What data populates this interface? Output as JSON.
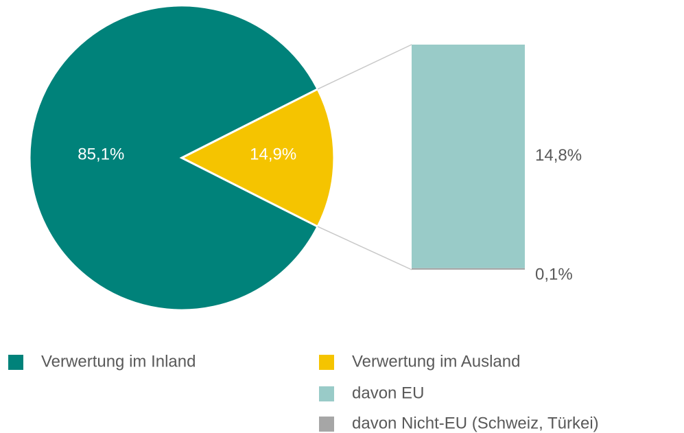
{
  "chart_data": {
    "type": "pie",
    "categories": [
      "Verwertung im Inland",
      "Verwertung im Ausland"
    ],
    "values": [
      85.1,
      14.9
    ],
    "value_labels": [
      "85,1%",
      "14,9%"
    ],
    "colors": [
      "#00827a",
      "#f5c400"
    ],
    "breakdown": {
      "categories": [
        "davon EU",
        "davon Nicht-EU (Schweiz, Türkei)"
      ],
      "values": [
        14.8,
        0.1
      ],
      "value_labels": [
        "14,8%",
        "0,1%"
      ],
      "colors": [
        "#99cbc8",
        "#a6a6a6"
      ]
    }
  }
}
